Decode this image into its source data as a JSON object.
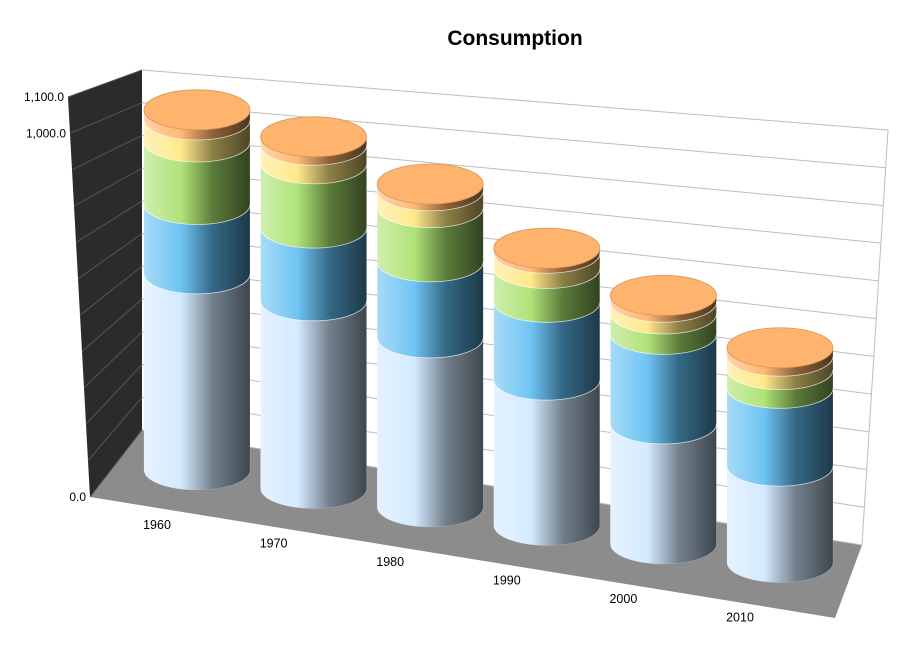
{
  "chart_data": {
    "type": "bar",
    "subtype": "stacked-3d-cylinder",
    "title": "Consumption",
    "xlabel": "",
    "ylabel": "",
    "categories": [
      "1960",
      "1970",
      "1980",
      "1990",
      "2000",
      "2010"
    ],
    "ylim": [
      0,
      1100
    ],
    "yticks": [
      {
        "value": 0,
        "label": "0.0"
      },
      {
        "value": 1000,
        "label": "1,000.0"
      },
      {
        "value": 1100,
        "label": "1,100.0"
      }
    ],
    "grid": true,
    "legend": "none",
    "series": [
      {
        "color": "#cfe8ff",
        "values": [
          580,
          555,
          500,
          430,
          355,
          285
        ]
      },
      {
        "color": "#5fbdf2",
        "values": [
          205,
          215,
          225,
          230,
          265,
          230
        ]
      },
      {
        "color": "#a7e06a",
        "values": [
          185,
          190,
          160,
          100,
          60,
          55
        ]
      },
      {
        "color": "#ffe680",
        "values": [
          65,
          55,
          50,
          45,
          35,
          40
        ]
      },
      {
        "color": "#ffb066",
        "values": [
          30,
          25,
          20,
          15,
          20,
          25
        ]
      }
    ],
    "wall_color": "#2b2b2b",
    "floor_color": "#8c8c8c"
  }
}
